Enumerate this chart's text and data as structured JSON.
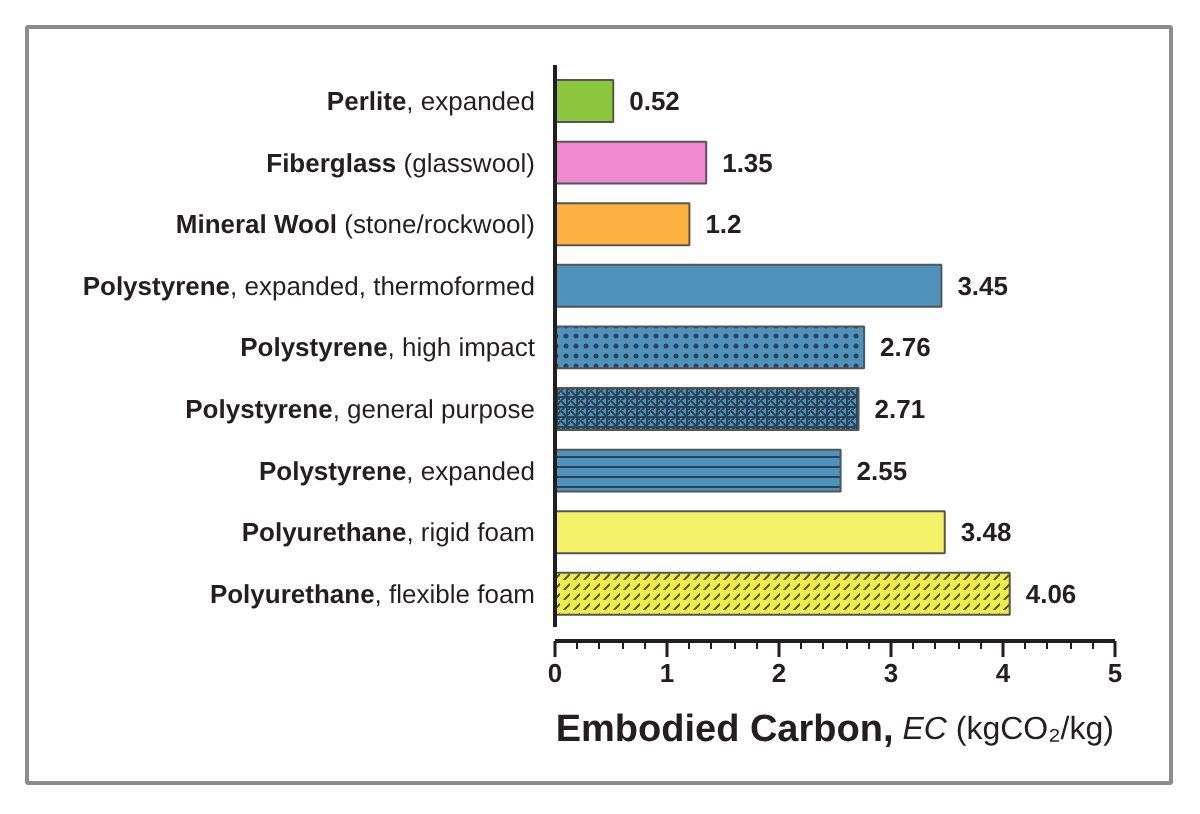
{
  "chart_data": {
    "type": "bar",
    "orientation": "horizontal",
    "categories": [
      "Perlite, expanded",
      "Fiberglass (glasswool)",
      "Mineral Wool (stone/rockwool)",
      "Polystyrene, expanded, thermoformed",
      "Polystyrene, high impact",
      "Polystyrene, general purpose",
      "Polystyrene, expanded",
      "Polyurethane, rigid foam",
      "Polyurethane, flexible foam"
    ],
    "values": [
      0.52,
      1.35,
      1.2,
      3.45,
      2.76,
      2.71,
      2.55,
      3.48,
      4.06
    ],
    "colors": [
      "#8cc63f",
      "#f08ad0",
      "#fbb040",
      "#4f92bc",
      "#4f92bc",
      "#4f92bc",
      "#4f92bc",
      "#f5f26a",
      "#f0ec4c"
    ],
    "xlabel": "Embodied Carbon, EC (kgCO₂/kg)",
    "xlim": [
      0,
      5
    ],
    "xticks": [
      0,
      {
        "value": 0.2,
        "label": null
      },
      {
        "value": 0.4,
        "label": null
      },
      {
        "value": 0.6,
        "label": null
      },
      {
        "value": 0.8,
        "label": null
      },
      1,
      {
        "value": 1.2,
        "label": null
      },
      {
        "value": 1.4,
        "label": null
      },
      {
        "value": 1.6,
        "label": null
      },
      {
        "value": 1.8,
        "label": null
      },
      2,
      {
        "value": 2.2,
        "label": null
      },
      {
        "value": 2.4,
        "label": null
      },
      {
        "value": 2.6,
        "label": null
      },
      {
        "value": 2.8,
        "label": null
      },
      3,
      {
        "value": 3.2,
        "label": null
      },
      {
        "value": 3.4,
        "label": null
      },
      {
        "value": 3.6,
        "label": null
      },
      {
        "value": 3.8,
        "label": null
      },
      4,
      {
        "value": 4.2,
        "label": null
      },
      {
        "value": 4.4,
        "label": null
      },
      {
        "value": 4.6,
        "label": null
      },
      {
        "value": 4.8,
        "label": null
      },
      5
    ],
    "data_labels": true,
    "grid": false
  }
}
